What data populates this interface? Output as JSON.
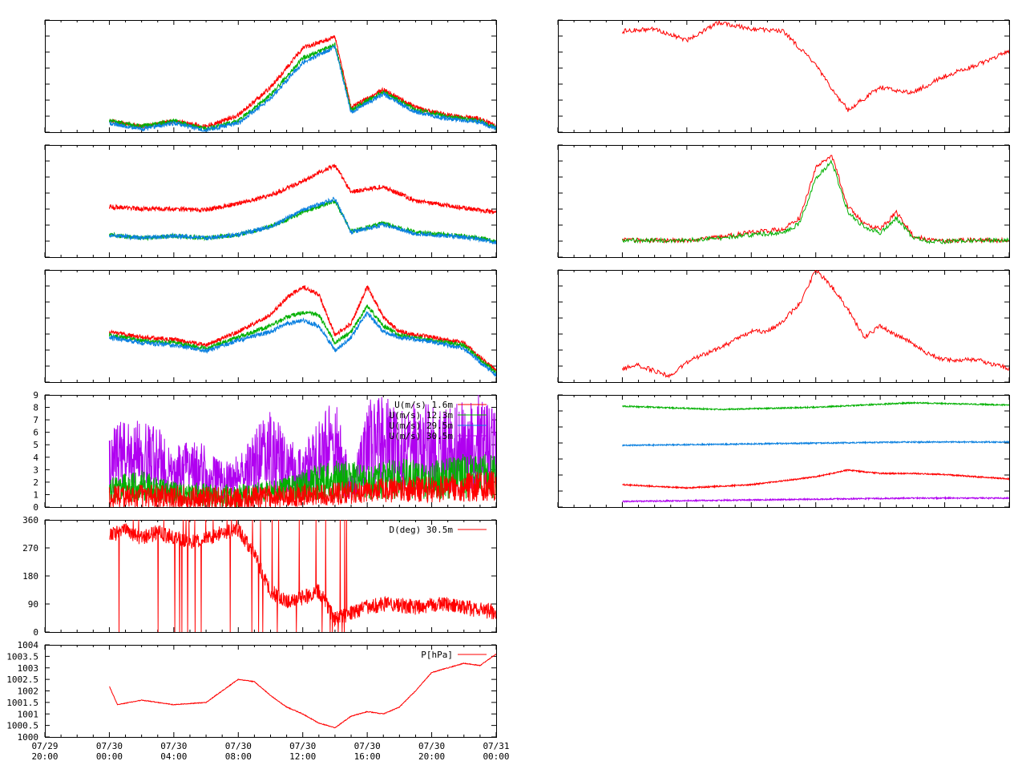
{
  "colors": {
    "red": "#ff0000",
    "green": "#00b000",
    "blue": "#0a80e0",
    "purple": "#b000f0",
    "brown": "#a05000",
    "frame": "#000000"
  },
  "x_axis": {
    "ticks": [
      {
        "line1": "07/29",
        "line2": "20:00"
      },
      {
        "line1": "07/30",
        "line2": "00:00"
      },
      {
        "line1": "07/30",
        "line2": "04:00"
      },
      {
        "line1": "07/30",
        "line2": "08:00"
      },
      {
        "line1": "07/30",
        "line2": "12:00"
      },
      {
        "line1": "07/30",
        "line2": "16:00"
      },
      {
        "line1": "07/30",
        "line2": "20:00"
      },
      {
        "line1": "07/31",
        "line2": "00:00"
      }
    ]
  },
  "chart_data": [
    {
      "id": "L1",
      "type": "line",
      "legend": [],
      "ylim": [
        0,
        1
      ],
      "yticks": [],
      "series": [
        {
          "color": "red",
          "x": [
            0,
            2,
            4,
            6,
            8,
            10,
            12,
            14,
            15,
            17,
            19,
            21,
            23,
            24
          ],
          "y": [
            0.1,
            0.05,
            0.1,
            0.05,
            0.15,
            0.4,
            0.75,
            0.85,
            0.22,
            0.38,
            0.22,
            0.15,
            0.12,
            0.05
          ]
        },
        {
          "color": "green",
          "x": [
            0,
            2,
            4,
            6,
            8,
            10,
            12,
            14,
            15,
            17,
            19,
            21,
            23,
            24
          ],
          "y": [
            0.1,
            0.05,
            0.1,
            0.03,
            0.1,
            0.33,
            0.66,
            0.78,
            0.2,
            0.36,
            0.2,
            0.14,
            0.1,
            0.04
          ]
        },
        {
          "color": "blue",
          "x": [
            0,
            2,
            4,
            6,
            8,
            10,
            12,
            14,
            15,
            17,
            19,
            21,
            23,
            24
          ],
          "y": [
            0.08,
            0.03,
            0.08,
            0.02,
            0.08,
            0.3,
            0.62,
            0.76,
            0.18,
            0.34,
            0.18,
            0.12,
            0.09,
            0.03
          ]
        }
      ]
    },
    {
      "id": "R1",
      "type": "line",
      "legend": [],
      "ylim": [
        0,
        1
      ],
      "yticks": [],
      "series": [
        {
          "color": "red",
          "x": [
            0,
            2,
            4,
            6,
            8,
            10,
            12,
            13,
            14,
            16,
            18,
            20,
            22,
            24
          ],
          "y": [
            0.9,
            0.92,
            0.82,
            0.98,
            0.92,
            0.9,
            0.6,
            0.38,
            0.2,
            0.4,
            0.35,
            0.5,
            0.6,
            0.72
          ]
        }
      ]
    },
    {
      "id": "L2",
      "type": "line",
      "legend": [],
      "ylim": [
        0,
        1
      ],
      "yticks": [],
      "series": [
        {
          "color": "red",
          "x": [
            0,
            2,
            4,
            6,
            8,
            10,
            12,
            14,
            15,
            17,
            19,
            21,
            23,
            24
          ],
          "y": [
            0.45,
            0.43,
            0.43,
            0.42,
            0.48,
            0.55,
            0.68,
            0.82,
            0.58,
            0.63,
            0.5,
            0.46,
            0.42,
            0.4
          ]
        },
        {
          "color": "green",
          "x": [
            0,
            2,
            4,
            6,
            8,
            10,
            12,
            14,
            15,
            17,
            19,
            21,
            23,
            24
          ],
          "y": [
            0.2,
            0.17,
            0.19,
            0.17,
            0.2,
            0.27,
            0.4,
            0.5,
            0.23,
            0.3,
            0.22,
            0.2,
            0.17,
            0.14
          ]
        },
        {
          "color": "blue",
          "x": [
            0,
            2,
            4,
            6,
            8,
            10,
            12,
            14,
            15,
            17,
            19,
            21,
            23,
            24
          ],
          "y": [
            0.2,
            0.17,
            0.19,
            0.17,
            0.2,
            0.27,
            0.42,
            0.52,
            0.22,
            0.29,
            0.21,
            0.19,
            0.16,
            0.13
          ]
        }
      ]
    },
    {
      "id": "R2",
      "type": "line",
      "legend": [],
      "ylim": [
        0,
        1
      ],
      "yticks": [],
      "series": [
        {
          "color": "red",
          "x": [
            0,
            4,
            6,
            8,
            10,
            11,
            12,
            13,
            14,
            15,
            16,
            17,
            18,
            19,
            20,
            22,
            24
          ],
          "y": [
            0.15,
            0.15,
            0.18,
            0.22,
            0.25,
            0.35,
            0.8,
            0.9,
            0.45,
            0.3,
            0.25,
            0.4,
            0.2,
            0.15,
            0.15,
            0.15,
            0.15
          ]
        },
        {
          "color": "green",
          "x": [
            0,
            4,
            6,
            8,
            10,
            11,
            12,
            13,
            14,
            15,
            16,
            17,
            18,
            19,
            20,
            22,
            24
          ],
          "y": [
            0.15,
            0.15,
            0.17,
            0.2,
            0.22,
            0.3,
            0.7,
            0.85,
            0.4,
            0.27,
            0.22,
            0.35,
            0.18,
            0.14,
            0.14,
            0.15,
            0.15
          ]
        }
      ]
    },
    {
      "id": "L3",
      "type": "line",
      "legend": [],
      "ylim": [
        0,
        1
      ],
      "yticks": [],
      "series": [
        {
          "color": "red",
          "x": [
            0,
            2,
            4,
            6,
            8,
            10,
            11,
            12,
            13,
            14,
            15,
            16,
            17,
            18,
            20,
            22,
            24
          ],
          "y": [
            0.45,
            0.4,
            0.38,
            0.33,
            0.45,
            0.6,
            0.75,
            0.85,
            0.78,
            0.42,
            0.52,
            0.85,
            0.58,
            0.45,
            0.4,
            0.35,
            0.1
          ]
        },
        {
          "color": "green",
          "x": [
            0,
            2,
            4,
            6,
            8,
            10,
            11,
            12,
            13,
            14,
            15,
            16,
            17,
            18,
            20,
            22,
            24
          ],
          "y": [
            0.42,
            0.37,
            0.35,
            0.3,
            0.4,
            0.5,
            0.58,
            0.62,
            0.6,
            0.35,
            0.45,
            0.68,
            0.5,
            0.42,
            0.37,
            0.33,
            0.08
          ]
        },
        {
          "color": "blue",
          "x": [
            0,
            2,
            4,
            6,
            8,
            10,
            11,
            12,
            13,
            14,
            15,
            16,
            17,
            18,
            20,
            22,
            24
          ],
          "y": [
            0.4,
            0.35,
            0.33,
            0.28,
            0.37,
            0.45,
            0.52,
            0.55,
            0.5,
            0.28,
            0.4,
            0.62,
            0.45,
            0.4,
            0.36,
            0.3,
            0.06
          ]
        }
      ]
    },
    {
      "id": "R3",
      "type": "line",
      "legend": [],
      "ylim": [
        0,
        1
      ],
      "yticks": [],
      "series": [
        {
          "color": "red",
          "x": [
            0,
            1,
            2,
            3,
            4,
            6,
            8,
            9,
            10,
            11,
            12,
            13,
            14,
            15,
            16,
            17,
            18,
            19,
            20,
            22,
            24
          ],
          "y": [
            0.12,
            0.15,
            0.1,
            0.05,
            0.18,
            0.3,
            0.45,
            0.45,
            0.55,
            0.7,
            1.0,
            0.85,
            0.65,
            0.4,
            0.5,
            0.42,
            0.35,
            0.25,
            0.2,
            0.2,
            0.12
          ]
        }
      ]
    },
    {
      "id": "L4",
      "type": "line",
      "title": "",
      "ylim": [
        0,
        9
      ],
      "yticks": [
        "0",
        "1",
        "2",
        "3",
        "4",
        "5",
        "6",
        "7",
        "8",
        "9"
      ],
      "legend": [
        {
          "label": "U(m/s)  1.6m",
          "color": "red"
        },
        {
          "label": "U(m/s) 12.3m",
          "color": "green"
        },
        {
          "label": "U(m/s) 29.5m",
          "color": "blue"
        },
        {
          "label": "U(m/s) 30.5m",
          "color": "purple"
        }
      ],
      "series": [
        {
          "color": "purple",
          "x": [
            0,
            1,
            2,
            3,
            4,
            5,
            6,
            7,
            8,
            9,
            10,
            11,
            12,
            13,
            14,
            15,
            16,
            17,
            18,
            19,
            20,
            21,
            22,
            23,
            24
          ],
          "y": [
            2.5,
            3.0,
            2.8,
            2.6,
            2.0,
            2.3,
            2.0,
            1.5,
            1.8,
            2.5,
            3.2,
            2.4,
            2.0,
            2.8,
            3.6,
            1.0,
            3.5,
            3.8,
            3.2,
            3.5,
            3.3,
            3.2,
            3.5,
            3.8,
            3.0
          ]
        },
        {
          "color": "green",
          "x": [
            0,
            2,
            4,
            6,
            8,
            10,
            12,
            14,
            16,
            18,
            20,
            22,
            24
          ],
          "y": [
            1.0,
            1.2,
            0.8,
            0.6,
            0.5,
            0.8,
            1.2,
            1.6,
            1.4,
            1.6,
            1.5,
            1.8,
            1.7
          ]
        },
        {
          "color": "red",
          "x": [
            0,
            2,
            4,
            6,
            8,
            10,
            12,
            14,
            16,
            18,
            20,
            22,
            24
          ],
          "y": [
            0.4,
            0.5,
            0.4,
            0.3,
            0.3,
            0.4,
            0.6,
            0.7,
            0.9,
            1.0,
            1.0,
            1.1,
            1.2
          ]
        }
      ]
    },
    {
      "id": "R4",
      "type": "line",
      "legend": [],
      "ylim": [
        0,
        1
      ],
      "yticks": [],
      "series": [
        {
          "color": "green",
          "x": [
            0,
            6,
            12,
            18,
            24
          ],
          "y": [
            0.9,
            0.87,
            0.89,
            0.93,
            0.91
          ]
        },
        {
          "color": "blue",
          "x": [
            0,
            6,
            12,
            18,
            24
          ],
          "y": [
            0.55,
            0.56,
            0.57,
            0.58,
            0.58
          ]
        },
        {
          "color": "red",
          "x": [
            0,
            4,
            8,
            12,
            14,
            16,
            18,
            20,
            24
          ],
          "y": [
            0.2,
            0.17,
            0.2,
            0.27,
            0.33,
            0.3,
            0.3,
            0.29,
            0.25
          ]
        },
        {
          "color": "purple",
          "x": [
            0,
            6,
            12,
            18,
            24
          ],
          "y": [
            0.05,
            0.06,
            0.07,
            0.08,
            0.08
          ]
        }
      ]
    },
    {
      "id": "L5",
      "type": "line",
      "ylim": [
        0,
        360
      ],
      "yticks": [
        "0",
        "90",
        "180",
        "270",
        "360"
      ],
      "legend": [
        {
          "label": "D(deg)  30.5m",
          "color": "red"
        }
      ],
      "series": [
        {
          "color": "red",
          "x": [
            0,
            1,
            2,
            3,
            4,
            5,
            6,
            7,
            8,
            9,
            10,
            11,
            12,
            13,
            14,
            15,
            16,
            17,
            18,
            19,
            20,
            21,
            22,
            23,
            24
          ],
          "y": [
            310,
            330,
            300,
            320,
            300,
            290,
            300,
            320,
            330,
            250,
            130,
            100,
            110,
            130,
            40,
            60,
            80,
            90,
            85,
            80,
            85,
            90,
            80,
            70,
            65
          ]
        }
      ]
    },
    {
      "id": "L6",
      "type": "line",
      "ylim": [
        1000,
        1004
      ],
      "yticks": [
        "1000",
        "1000.5",
        "1001",
        "1001.5",
        "1002",
        "1002.5",
        "1003",
        "1003.5",
        "1004"
      ],
      "legend": [
        {
          "label": "P[hPa]",
          "color": "red"
        }
      ],
      "series": [
        {
          "color": "red",
          "x": [
            0,
            0.5,
            2,
            4,
            6,
            7,
            8,
            9,
            10,
            11,
            12,
            13,
            14,
            15,
            16,
            17,
            18,
            19,
            20,
            21,
            22,
            23,
            24
          ],
          "y": [
            1002.2,
            1001.4,
            1001.6,
            1001.4,
            1001.5,
            1002.0,
            1002.5,
            1002.4,
            1001.8,
            1001.3,
            1001.0,
            1000.6,
            1000.4,
            1000.9,
            1001.1,
            1001.0,
            1001.3,
            1002.0,
            1002.8,
            1003.0,
            1003.2,
            1003.1,
            1003.6
          ]
        }
      ]
    }
  ]
}
